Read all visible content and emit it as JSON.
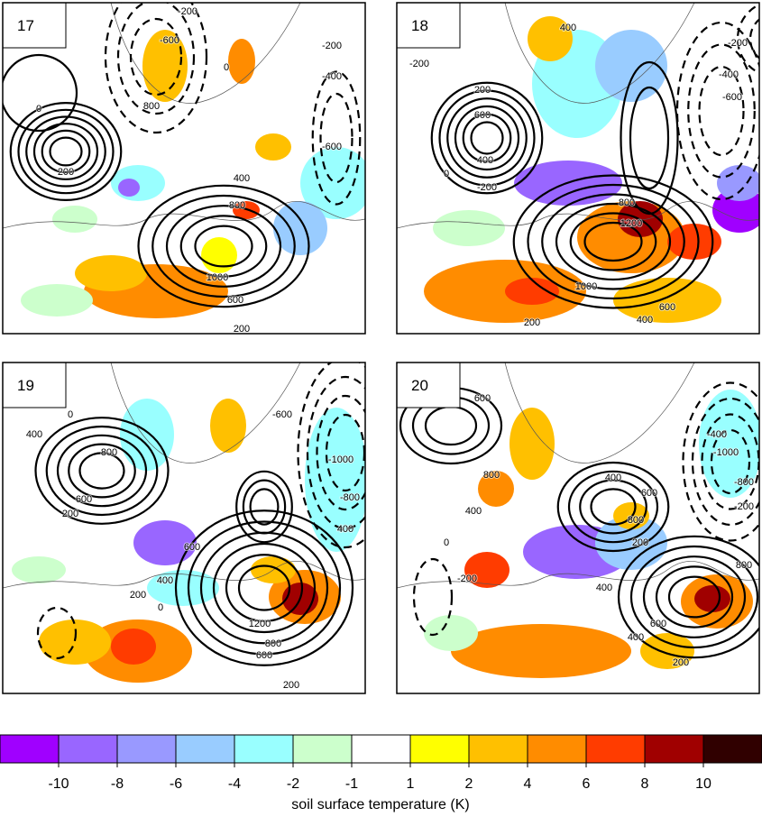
{
  "panels": [
    {
      "label": "17",
      "contour_labels": [
        -200,
        -600,
        0,
        -400,
        -200,
        800,
        -600,
        0,
        200,
        400,
        800,
        1000,
        600,
        200
      ]
    },
    {
      "label": "18",
      "contour_labels": [
        -200,
        400,
        -200,
        -400,
        -600,
        200,
        600,
        400,
        0,
        -200,
        800,
        1200,
        1000,
        600,
        400,
        200
      ]
    },
    {
      "label": "19",
      "contour_labels": [
        0,
        400,
        800,
        600,
        200,
        600,
        400,
        200,
        0,
        1200,
        800,
        600,
        200,
        -600,
        -1000,
        -800,
        400
      ]
    },
    {
      "label": "20",
      "contour_labels": [
        0,
        600,
        800,
        400,
        0,
        -200,
        400,
        600,
        800,
        200,
        -400,
        -1000,
        -800,
        -200,
        800,
        600,
        400,
        200,
        400
      ]
    }
  ],
  "colorbar": {
    "label": "soil surface temperature (K)",
    "ticks": [
      -10,
      -8,
      -6,
      -4,
      -2,
      -1,
      1,
      2,
      4,
      6,
      8,
      10
    ],
    "colors": [
      "#a000ff",
      "#9966ff",
      "#9999ff",
      "#99ccff",
      "#99ffff",
      "#ccffcc",
      "#ffffff",
      "#ffff00",
      "#ffc000",
      "#ff8c00",
      "#ff3c00",
      "#a00000",
      "#300000"
    ]
  }
}
